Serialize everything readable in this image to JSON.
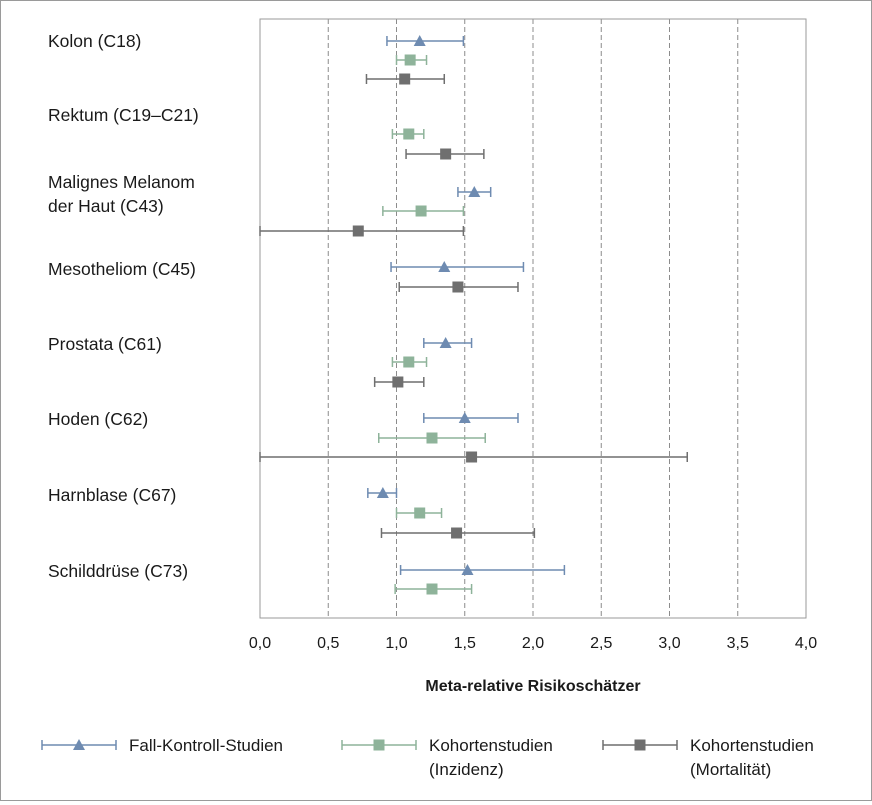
{
  "colors": {
    "case_control": "#6e8bb1",
    "cohort_incidence": "#8eb39a",
    "cohort_mortality": "#6f6f6f",
    "gridline": "#8c8c8c",
    "axis": "#9a9a9a"
  },
  "chart_data": {
    "type": "forest",
    "xlabel": "Meta-relative Risikoschätzer",
    "xlim": [
      0,
      4
    ],
    "xticks": [
      "0,0",
      "0,5",
      "1,0",
      "1,5",
      "2,0",
      "2,5",
      "3,0",
      "3,5",
      "4,0"
    ],
    "grid": "vertical dashed",
    "legend_position": "bottom",
    "series": [
      {
        "key": "case_control",
        "name": "Fall-Kontroll-Studien",
        "name_line2": "",
        "marker": "triangle",
        "color": "#6e8bb1"
      },
      {
        "key": "cohort_incidence",
        "name": "Kohortenstudien",
        "name_line2": "(Inzidenz)",
        "marker": "square",
        "color": "#8eb39a"
      },
      {
        "key": "cohort_mortality",
        "name": "Kohortenstudien",
        "name_line2": "(Mortalität)",
        "marker": "square",
        "color": "#6f6f6f"
      }
    ],
    "categories": [
      {
        "label_lines": [
          "Kolon (C18)"
        ],
        "case_control": {
          "est": 1.17,
          "lo": 0.93,
          "hi": 1.49
        },
        "cohort_incidence": {
          "est": 1.1,
          "lo": 1.0,
          "hi": 1.22
        },
        "cohort_mortality": {
          "est": 1.06,
          "lo": 0.78,
          "hi": 1.35
        }
      },
      {
        "label_lines": [
          "Rektum (C19–C21)"
        ],
        "case_control": null,
        "cohort_incidence": {
          "est": 1.09,
          "lo": 0.97,
          "hi": 1.2
        },
        "cohort_mortality": {
          "est": 1.36,
          "lo": 1.07,
          "hi": 1.64
        }
      },
      {
        "label_lines": [
          "Malignes Melanom",
          "der Haut (C43)"
        ],
        "case_control": {
          "est": 1.57,
          "lo": 1.45,
          "hi": 1.69
        },
        "cohort_incidence": {
          "est": 1.18,
          "lo": 0.9,
          "hi": 1.49
        },
        "cohort_mortality": {
          "est": 0.72,
          "lo": 0.0,
          "hi": 1.49
        }
      },
      {
        "label_lines": [
          "Mesotheliom (C45)"
        ],
        "case_control": {
          "est": 1.35,
          "lo": 0.96,
          "hi": 1.93
        },
        "cohort_incidence": null,
        "cohort_mortality": {
          "est": 1.45,
          "lo": 1.02,
          "hi": 1.89
        }
      },
      {
        "label_lines": [
          "Prostata (C61)"
        ],
        "case_control": {
          "est": 1.36,
          "lo": 1.2,
          "hi": 1.55
        },
        "cohort_incidence": {
          "est": 1.09,
          "lo": 0.97,
          "hi": 1.22
        },
        "cohort_mortality": {
          "est": 1.01,
          "lo": 0.84,
          "hi": 1.2
        }
      },
      {
        "label_lines": [
          "Hoden (C62)"
        ],
        "case_control": {
          "est": 1.5,
          "lo": 1.2,
          "hi": 1.89
        },
        "cohort_incidence": {
          "est": 1.26,
          "lo": 0.87,
          "hi": 1.65
        },
        "cohort_mortality": {
          "est": 1.55,
          "lo": 0.0,
          "hi": 3.13
        }
      },
      {
        "label_lines": [
          "Harnblase (C67)"
        ],
        "case_control": {
          "est": 0.9,
          "lo": 0.79,
          "hi": 1.0
        },
        "cohort_incidence": {
          "est": 1.17,
          "lo": 1.0,
          "hi": 1.33
        },
        "cohort_mortality": {
          "est": 1.44,
          "lo": 0.89,
          "hi": 2.01
        }
      },
      {
        "label_lines": [
          "Schilddrüse (C73)"
        ],
        "case_control": {
          "est": 1.52,
          "lo": 1.03,
          "hi": 2.23
        },
        "cohort_incidence": {
          "est": 1.26,
          "lo": 0.99,
          "hi": 1.55
        },
        "cohort_mortality": null
      }
    ]
  }
}
